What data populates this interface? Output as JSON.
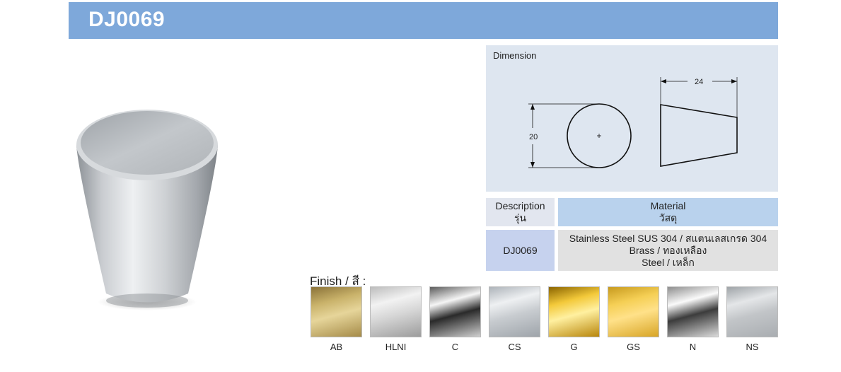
{
  "header": {
    "title": "DJ0069"
  },
  "dimension": {
    "label": "Dimension",
    "width_value": "24",
    "height_value": "20"
  },
  "table": {
    "description_header": [
      "Description",
      "รุ่น"
    ],
    "material_header": [
      "Material",
      "วัสดุ"
    ],
    "model": "DJ0069",
    "materials": [
      "Stainless Steel SUS 304 / สแตนเลสเกรด 304",
      "Brass / ทองเหลือง",
      "Steel / เหล็ก"
    ]
  },
  "finish": {
    "label": "Finish / สี :",
    "swatches": [
      {
        "code": "AB",
        "colors": [
          "#8a7238",
          "#c9b26a",
          "#e6d59a",
          "#a58b48"
        ]
      },
      {
        "code": "HLNI",
        "colors": [
          "#bdbdbd",
          "#f2f2f2",
          "#d6d6d6",
          "#9c9c9c"
        ]
      },
      {
        "code": "C",
        "colors": [
          "#5c5c5c",
          "#f5f5f5",
          "#2a2a2a",
          "#cfcfcf"
        ]
      },
      {
        "code": "CS",
        "colors": [
          "#aeb4ba",
          "#eef0f2",
          "#c8ccd0",
          "#9ea4aa"
        ]
      },
      {
        "code": "G",
        "colors": [
          "#8a6400",
          "#f3c93a",
          "#fff0a0",
          "#b8860b"
        ]
      },
      {
        "code": "GS",
        "colors": [
          "#c79a1e",
          "#f5cf55",
          "#ffe189",
          "#d8a526"
        ]
      },
      {
        "code": "N",
        "colors": [
          "#8e8e8e",
          "#fafafa",
          "#3c3c3c",
          "#dadada"
        ]
      },
      {
        "code": "NS",
        "colors": [
          "#9fa4a8",
          "#e4e6e8",
          "#c2c5c8",
          "#a9adb1"
        ]
      }
    ]
  }
}
